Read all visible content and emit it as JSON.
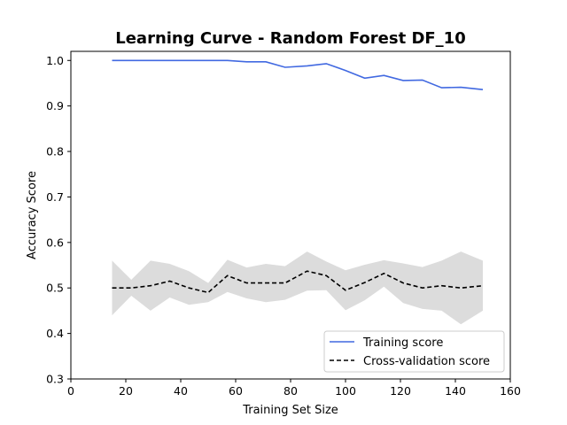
{
  "chart_data": {
    "type": "line",
    "title": "Learning Curve - Random Forest DF_10",
    "xlabel": "Training Set Size",
    "ylabel": "Accuracy Score",
    "xlim": [
      0,
      160
    ],
    "ylim": [
      0.3,
      1.02
    ],
    "xticks": [
      0,
      20,
      40,
      60,
      80,
      100,
      120,
      140,
      160
    ],
    "yticks": [
      0.3,
      0.4,
      0.5,
      0.6,
      0.7,
      0.8,
      0.9,
      1.0
    ],
    "grid": false,
    "legend_position": "lower-right",
    "x": [
      15,
      22,
      29,
      36,
      43,
      50,
      57,
      64,
      71,
      78,
      86,
      93,
      100,
      107,
      114,
      121,
      128,
      135,
      142,
      150
    ],
    "series": [
      {
        "name": "Training score",
        "color": "#4169e1",
        "style": "solid",
        "values": [
          1.0,
          1.0,
          1.0,
          1.0,
          1.0,
          1.0,
          1.0,
          0.997,
          0.997,
          0.985,
          0.988,
          0.993,
          0.978,
          0.961,
          0.967,
          0.956,
          0.957,
          0.94,
          0.941,
          0.936
        ]
      },
      {
        "name": "Cross-validation score",
        "color": "#000000",
        "style": "dashed",
        "values": [
          0.5,
          0.5,
          0.505,
          0.515,
          0.5,
          0.49,
          0.527,
          0.511,
          0.511,
          0.511,
          0.537,
          0.527,
          0.495,
          0.512,
          0.532,
          0.511,
          0.5,
          0.505,
          0.5,
          0.505
        ],
        "band_upper": [
          0.56,
          0.518,
          0.56,
          0.553,
          0.537,
          0.511,
          0.562,
          0.545,
          0.553,
          0.548,
          0.58,
          0.558,
          0.539,
          0.551,
          0.561,
          0.554,
          0.546,
          0.56,
          0.58,
          0.56
        ],
        "band_lower": [
          0.44,
          0.483,
          0.45,
          0.479,
          0.463,
          0.469,
          0.491,
          0.477,
          0.469,
          0.474,
          0.494,
          0.495,
          0.451,
          0.473,
          0.503,
          0.467,
          0.454,
          0.45,
          0.42,
          0.45
        ],
        "band_color": "#dcdcdc"
      }
    ]
  }
}
